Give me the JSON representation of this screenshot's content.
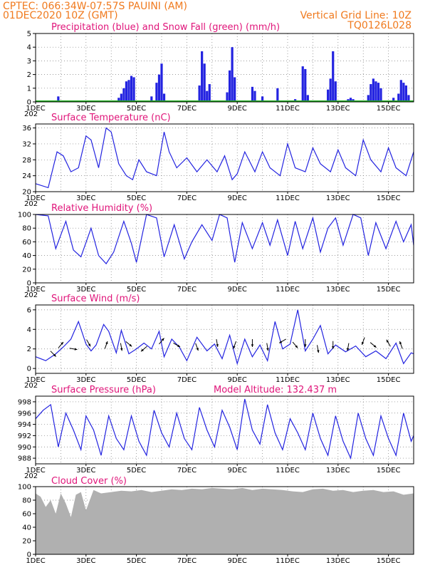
{
  "header": {
    "station": "CPTEC:   066:34W-07:57S   PAUINI (AM)",
    "run": "01DEC2020 10Z (GMT)",
    "grid_note": "Vertical Grid Line: 10Z",
    "code": "TQ0126L028"
  },
  "x_axis": {
    "labels": [
      "1DEC",
      "3DEC",
      "5DEC",
      "7DEC",
      "9DEC",
      "11DEC",
      "13DEC",
      "15DEC"
    ],
    "label_days": [
      1,
      3,
      5,
      7,
      9,
      11,
      13,
      15
    ],
    "start_day": 1,
    "end_day": 16,
    "corner_label": "202"
  },
  "colors": {
    "header": "#f07a1e",
    "title": "#e0157a",
    "line": "#2323e0",
    "precip": "#2323e0",
    "snow": "#20b020",
    "cloud": "#b0b0b0",
    "wind_arrow": "#000000"
  },
  "chart_data": [
    {
      "type": "bar",
      "title": "Precipitation (blue) and Snow Fall (green) (mm/h)",
      "ylim": [
        0,
        5
      ],
      "yticks": [
        0,
        1,
        2,
        3,
        4,
        5
      ],
      "series": [
        {
          "name": "Precipitation",
          "x": [
            1.9,
            4.3,
            4.4,
            4.5,
            4.6,
            4.7,
            4.8,
            4.9,
            5.6,
            5.8,
            5.9,
            6.0,
            6.1,
            7.5,
            7.6,
            7.7,
            7.8,
            7.9,
            8.6,
            8.7,
            8.8,
            8.9,
            9.6,
            9.7,
            10.0,
            10.6,
            11.3,
            11.6,
            11.7,
            11.8,
            12.6,
            12.7,
            12.8,
            12.9,
            13.4,
            13.5,
            13.6,
            14.2,
            14.3,
            14.4,
            14.5,
            14.6,
            14.7,
            15.2,
            15.4,
            15.5,
            15.6,
            15.7,
            15.8
          ],
          "values": [
            0.4,
            0.3,
            0.6,
            1.0,
            1.5,
            1.6,
            1.9,
            1.8,
            0.4,
            1.4,
            2.0,
            2.8,
            0.6,
            1.2,
            3.7,
            2.8,
            0.8,
            1.3,
            0.7,
            2.3,
            4.0,
            1.8,
            1.1,
            0.8,
            0.4,
            1.0,
            0.2,
            2.6,
            2.4,
            0.5,
            0.9,
            1.7,
            3.7,
            1.5,
            0.2,
            0.3,
            0.2,
            0.5,
            1.3,
            1.7,
            1.5,
            1.4,
            1.0,
            0.3,
            0.6,
            1.6,
            1.4,
            1.2,
            0.5
          ]
        },
        {
          "name": "Snow Fall",
          "x": [
            1.0,
            16.0
          ],
          "values": [
            0,
            0
          ]
        }
      ]
    },
    {
      "type": "line",
      "title": "Surface Temperature (nC)",
      "ylim": [
        20,
        37
      ],
      "yticks": [
        20,
        24,
        28,
        32,
        36
      ],
      "series": [
        {
          "name": "Surface Temperature",
          "x": [
            1.0,
            1.5,
            1.85,
            2.1,
            2.4,
            2.7,
            3.0,
            3.2,
            3.5,
            3.8,
            4.0,
            4.3,
            4.6,
            4.85,
            5.1,
            5.4,
            5.8,
            6.1,
            6.3,
            6.6,
            7.0,
            7.4,
            7.8,
            8.2,
            8.5,
            8.8,
            9.0,
            9.3,
            9.7,
            10.0,
            10.3,
            10.7,
            11.0,
            11.3,
            11.7,
            12.0,
            12.3,
            12.7,
            13.0,
            13.3,
            13.7,
            14.0,
            14.3,
            14.7,
            15.0,
            15.3,
            15.7,
            16.0
          ],
          "values": [
            22,
            21,
            30,
            29,
            25,
            26,
            34,
            33,
            26,
            36,
            35,
            27,
            24,
            23,
            28,
            25,
            24,
            35,
            30,
            26,
            28.5,
            25,
            28,
            25,
            29,
            23,
            24.5,
            30,
            25,
            30,
            26,
            24,
            32,
            26,
            25,
            31,
            27,
            25,
            30.5,
            26,
            24,
            33,
            28,
            25,
            31,
            26,
            24,
            30
          ]
        }
      ]
    },
    {
      "type": "line",
      "title": "Relative Humidity (%)",
      "ylim": [
        0,
        100
      ],
      "yticks": [
        0,
        20,
        40,
        60,
        80,
        100
      ],
      "series": [
        {
          "name": "Relative Humidity",
          "x": [
            1.0,
            1.5,
            1.8,
            2.2,
            2.5,
            2.8,
            3.2,
            3.5,
            3.8,
            4.1,
            4.5,
            4.8,
            5.0,
            5.4,
            5.8,
            6.1,
            6.5,
            6.9,
            7.2,
            7.6,
            8.0,
            8.3,
            8.6,
            8.9,
            9.2,
            9.6,
            10.0,
            10.3,
            10.6,
            11.0,
            11.3,
            11.6,
            12.0,
            12.3,
            12.6,
            12.9,
            13.2,
            13.6,
            13.9,
            14.2,
            14.5,
            14.9,
            15.3,
            15.6,
            15.9,
            16.0
          ],
          "values": [
            100,
            98,
            50,
            90,
            48,
            38,
            80,
            40,
            28,
            45,
            90,
            58,
            30,
            100,
            95,
            38,
            85,
            35,
            60,
            85,
            62,
            100,
            95,
            30,
            88,
            50,
            88,
            55,
            92,
            40,
            90,
            50,
            95,
            45,
            80,
            95,
            55,
            100,
            95,
            40,
            88,
            50,
            90,
            60,
            85,
            55
          ]
        }
      ]
    },
    {
      "type": "line",
      "title": "Surface Wind (m/s)",
      "ylim": [
        -0.5,
        6.5
      ],
      "yticks": [
        0,
        2,
        4,
        6
      ],
      "series": [
        {
          "name": "Surface Wind",
          "x": [
            1.0,
            1.4,
            1.8,
            2.1,
            2.4,
            2.7,
            3.0,
            3.2,
            3.4,
            3.7,
            3.9,
            4.2,
            4.4,
            4.7,
            5.0,
            5.3,
            5.6,
            5.9,
            6.1,
            6.4,
            6.7,
            7.0,
            7.4,
            7.8,
            8.1,
            8.4,
            8.7,
            9.0,
            9.3,
            9.6,
            9.9,
            10.2,
            10.5,
            10.8,
            11.1,
            11.4,
            11.7,
            12.0,
            12.3,
            12.6,
            12.9,
            13.3,
            13.7,
            14.1,
            14.5,
            14.9,
            15.3,
            15.6,
            15.9,
            16.0
          ],
          "values": [
            1.2,
            0.8,
            1.5,
            2.2,
            3.0,
            4.8,
            2.5,
            1.8,
            2.4,
            4.5,
            3.8,
            1.6,
            3.9,
            1.5,
            2.0,
            2.6,
            2.0,
            3.8,
            1.2,
            3.0,
            2.2,
            0.8,
            3.2,
            1.8,
            2.5,
            1.0,
            3.4,
            0.5,
            3.0,
            1.2,
            2.4,
            0.8,
            4.8,
            2.0,
            2.5,
            6.0,
            1.8,
            3.0,
            4.4,
            1.5,
            2.4,
            1.7,
            2.3,
            1.2,
            1.8,
            1.0,
            2.6,
            0.5,
            1.6,
            1.5
          ]
        }
      ],
      "arrows": {
        "x": [
          1.7,
          2.0,
          2.5,
          3.1,
          3.8,
          4.4,
          4.7,
          5.3,
          6.0,
          6.6,
          7.4,
          8.2,
          8.9,
          9.6,
          10.2,
          10.8,
          11.3,
          11.7,
          12.2,
          12.8,
          13.4,
          14.0,
          14.4,
          15.0,
          15.5
        ],
        "speed": [
          1.5,
          2.4,
          2.0,
          2.6,
          2.4,
          2.2,
          2.5,
          2.0,
          2.8,
          2.4,
          2.2,
          2.6,
          2.4,
          2.6,
          2.2,
          2.8,
          2.4,
          2.6,
          2.0,
          2.4,
          2.2,
          2.8,
          2.4,
          2.6,
          2.4
        ],
        "toward_deg": [
          135,
          40,
          100,
          150,
          20,
          170,
          130,
          230,
          40,
          120,
          160,
          170,
          200,
          180,
          170,
          240,
          140,
          180,
          170,
          180,
          190,
          200,
          130,
          330,
          340
        ]
      }
    },
    {
      "type": "line",
      "title": "Surface Pressure (hPa)",
      "subtitle": "Model Altitude: 132.437 m",
      "ylim": [
        987,
        999
      ],
      "yticks": [
        988,
        990,
        992,
        994,
        996,
        998
      ],
      "series": [
        {
          "name": "Surface Pressure",
          "x": [
            1.0,
            1.3,
            1.6,
            1.9,
            2.2,
            2.5,
            2.8,
            3.0,
            3.3,
            3.6,
            3.9,
            4.2,
            4.5,
            4.8,
            5.1,
            5.4,
            5.7,
            6.0,
            6.3,
            6.6,
            6.9,
            7.2,
            7.5,
            7.8,
            8.1,
            8.4,
            8.7,
            9.0,
            9.3,
            9.6,
            9.9,
            10.2,
            10.5,
            10.8,
            11.1,
            11.4,
            11.7,
            12.0,
            12.3,
            12.6,
            12.9,
            13.2,
            13.5,
            13.8,
            14.1,
            14.4,
            14.7,
            15.0,
            15.3,
            15.6,
            15.9,
            16.0
          ],
          "values": [
            995,
            996.5,
            997.5,
            990,
            996,
            993,
            989.5,
            995.5,
            993,
            988.5,
            995.5,
            991.5,
            989.5,
            995.5,
            991,
            988.5,
            996.5,
            992.5,
            990,
            996,
            991.5,
            989.5,
            997,
            993,
            990,
            996.5,
            993.5,
            989.5,
            998.5,
            993,
            990.5,
            997.5,
            992.5,
            989.5,
            995,
            992.5,
            989.5,
            996,
            991.5,
            988.5,
            995.5,
            991,
            988,
            996,
            991.5,
            988.5,
            995.5,
            991.5,
            988.5,
            996,
            991,
            992
          ]
        }
      ]
    },
    {
      "type": "area",
      "title": "Cloud Cover (%)",
      "ylim": [
        0,
        100
      ],
      "yticks": [
        0,
        20,
        40,
        60,
        80,
        100
      ],
      "series": [
        {
          "name": "Cloud Cover",
          "x": [
            1.0,
            1.2,
            1.4,
            1.6,
            1.8,
            2.0,
            2.2,
            2.4,
            2.6,
            2.8,
            3.0,
            3.3,
            3.6,
            4.0,
            4.4,
            4.8,
            5.2,
            5.6,
            6.0,
            6.4,
            6.8,
            7.2,
            7.6,
            8.0,
            8.4,
            8.8,
            9.2,
            9.6,
            10.0,
            10.4,
            10.8,
            11.2,
            11.6,
            12.0,
            12.4,
            12.8,
            13.2,
            13.6,
            14.0,
            14.4,
            14.8,
            15.2,
            15.6,
            16.0
          ],
          "values": [
            90,
            85,
            70,
            80,
            60,
            90,
            75,
            55,
            88,
            92,
            65,
            95,
            90,
            92,
            94,
            93,
            95,
            92,
            94,
            96,
            95,
            97,
            96,
            98,
            97,
            96,
            98,
            95,
            97,
            96,
            95,
            93,
            92,
            96,
            97,
            94,
            95,
            92,
            94,
            95,
            92,
            93,
            88,
            90
          ]
        }
      ]
    }
  ]
}
